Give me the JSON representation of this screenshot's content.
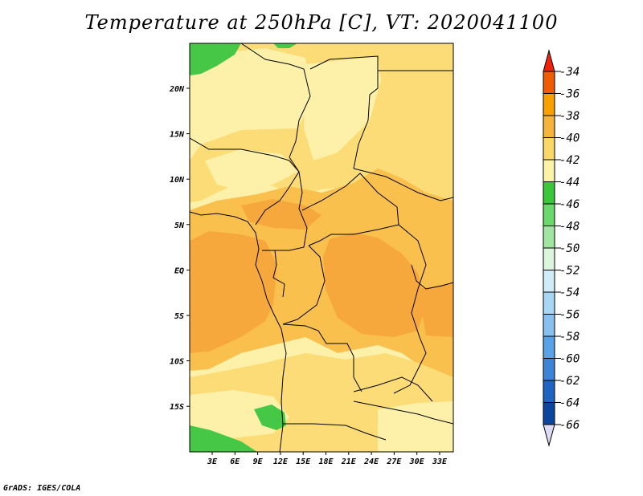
{
  "title": "Temperature at 250hPa [C], VT: 2020041100",
  "credit": "GrADS: IGES/COLA",
  "map": {
    "lon_labels": [
      "3E",
      "6E",
      "9E",
      "12E",
      "15E",
      "18E",
      "21E",
      "24E",
      "27E",
      "30E",
      "33E"
    ],
    "lat_labels": [
      "20N",
      "15N",
      "10N",
      "5N",
      "EQ",
      "5S",
      "10S",
      "15S"
    ]
  },
  "colorbar": {
    "labels": [
      "-34",
      "-36",
      "-38",
      "-40",
      "-42",
      "-44",
      "-46",
      "-48",
      "-50",
      "-52",
      "-54",
      "-56",
      "-58",
      "-60",
      "-62",
      "-64",
      "-66"
    ],
    "colors": [
      "#f0230a",
      "#f25c00",
      "#f7a000",
      "#f7b43c",
      "#fbd76a",
      "#fdf3a8",
      "#3cc63c",
      "#6ad86a",
      "#a0e6a0",
      "#dcf6dc",
      "#d0ecf8",
      "#a8d6f5",
      "#88c0f0",
      "#5aa2e8",
      "#3c84d8",
      "#1e64c0",
      "#0a46a0",
      "#061e6e",
      "#dcdcf5"
    ],
    "top_arrow_color": "#f0230a",
    "bottom_arrow_color": "#dcdcf5"
  },
  "field_colors": {
    "c_36": "#f7a83c",
    "c_38": "#f9c04e",
    "c_40": "#fbdc76",
    "c_42": "#fdf1aa",
    "c_44": "#46c846"
  }
}
